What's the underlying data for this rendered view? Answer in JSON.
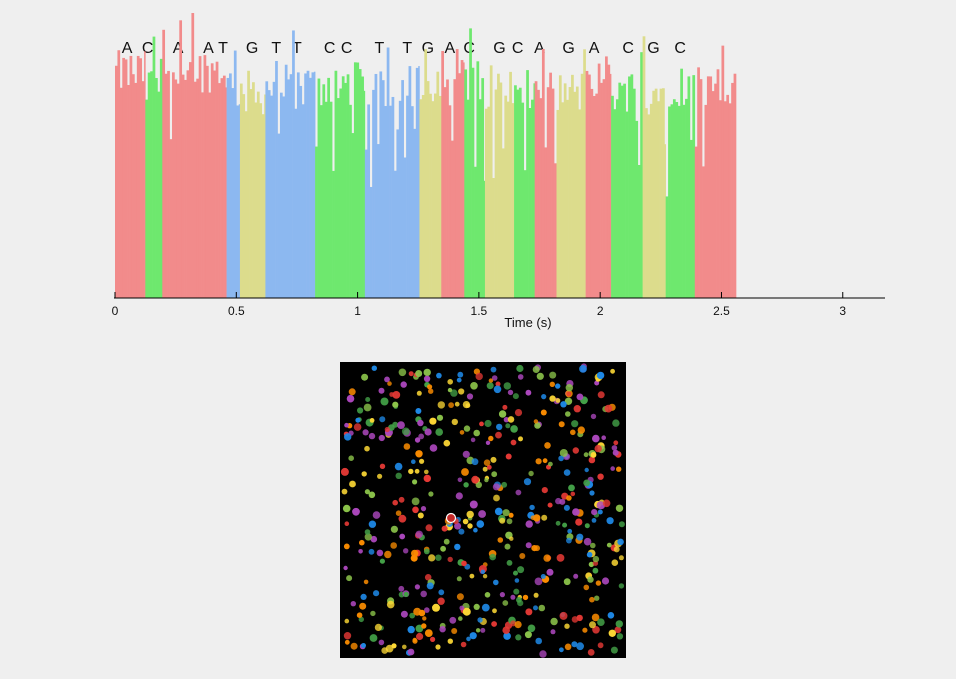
{
  "chart_data": [
    {
      "type": "bar",
      "subtype": "sequencing-trace",
      "title": "",
      "xlabel": "Time (s)",
      "ylabel": "",
      "xlim": [
        0,
        3.17
      ],
      "xticks": [
        0,
        0.5,
        1,
        1.5,
        2,
        2.5,
        3
      ],
      "xtick_labels": [
        "0",
        "0.5",
        "1",
        "1.5",
        "2",
        "2.5",
        "3"
      ],
      "grid": false,
      "base_colors": {
        "A": "#f28b8b",
        "C": "#6ee86e",
        "G": "#dcdc8c",
        "T": "#8cb8f0"
      },
      "base_calls": [
        {
          "base": "A",
          "t": 0.05
        },
        {
          "base": "C",
          "t": 0.135
        },
        {
          "base": "A",
          "t": 0.26
        },
        {
          "base": "A",
          "t": 0.385
        },
        {
          "base": "T",
          "t": 0.445
        },
        {
          "base": "G",
          "t": 0.565
        },
        {
          "base": "T",
          "t": 0.665
        },
        {
          "base": "T",
          "t": 0.75
        },
        {
          "base": "C",
          "t": 0.885
        },
        {
          "base": "C",
          "t": 0.955
        },
        {
          "base": "T",
          "t": 1.09
        },
        {
          "base": "T",
          "t": 1.205
        },
        {
          "base": "G",
          "t": 1.29
        },
        {
          "base": "A",
          "t": 1.38
        },
        {
          "base": "C",
          "t": 1.46
        },
        {
          "base": "G",
          "t": 1.585
        },
        {
          "base": "C",
          "t": 1.66
        },
        {
          "base": "A",
          "t": 1.75
        },
        {
          "base": "G",
          "t": 1.87
        },
        {
          "base": "A",
          "t": 1.975
        },
        {
          "base": "C",
          "t": 2.115
        },
        {
          "base": "G",
          "t": 2.22
        },
        {
          "base": "C",
          "t": 2.33
        }
      ],
      "segments": [
        {
          "base": "A",
          "start": 0.0,
          "end": 0.125,
          "level": 0.79
        },
        {
          "base": "C",
          "start": 0.125,
          "end": 0.195,
          "level": 0.74
        },
        {
          "base": "A",
          "start": 0.195,
          "end": 0.46,
          "level": 0.8
        },
        {
          "base": "T",
          "start": 0.46,
          "end": 0.515,
          "level": 0.74
        },
        {
          "base": "G",
          "start": 0.515,
          "end": 0.62,
          "level": 0.72
        },
        {
          "base": "T",
          "start": 0.62,
          "end": 0.825,
          "level": 0.74
        },
        {
          "base": "C",
          "start": 0.825,
          "end": 1.03,
          "level": 0.75
        },
        {
          "base": "T",
          "start": 1.03,
          "end": 1.255,
          "level": 0.74
        },
        {
          "base": "G",
          "start": 1.255,
          "end": 1.345,
          "level": 0.72
        },
        {
          "base": "A",
          "start": 1.345,
          "end": 1.44,
          "level": 0.8
        },
        {
          "base": "C",
          "start": 1.44,
          "end": 1.525,
          "level": 0.76
        },
        {
          "base": "G",
          "start": 1.525,
          "end": 1.645,
          "level": 0.74
        },
        {
          "base": "C",
          "start": 1.645,
          "end": 1.73,
          "level": 0.72
        },
        {
          "base": "A",
          "start": 1.73,
          "end": 1.82,
          "level": 0.74
        },
        {
          "base": "G",
          "start": 1.82,
          "end": 1.94,
          "level": 0.72
        },
        {
          "base": "A",
          "start": 1.94,
          "end": 2.045,
          "level": 0.78
        },
        {
          "base": "C",
          "start": 2.045,
          "end": 2.175,
          "level": 0.73
        },
        {
          "base": "G",
          "start": 2.175,
          "end": 2.27,
          "level": 0.72
        },
        {
          "base": "C",
          "start": 2.27,
          "end": 2.39,
          "level": 0.75
        },
        {
          "base": "A",
          "start": 2.39,
          "end": 2.56,
          "level": 0.73
        }
      ]
    }
  ],
  "cluster_image": {
    "background": "#000000",
    "dot_colors": [
      "#e53935",
      "#43a047",
      "#1e88e5",
      "#fdd835",
      "#fb8c00",
      "#8bc34a",
      "#ab47bc"
    ],
    "dot_count": 520,
    "selected_dot_color": "#c62828"
  }
}
